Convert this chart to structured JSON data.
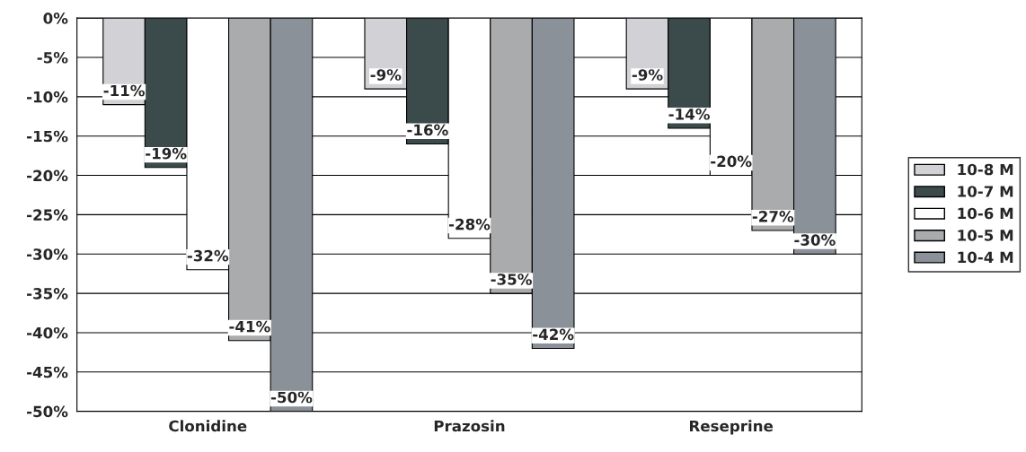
{
  "chart_data": {
    "type": "bar",
    "categories": [
      "Clonidine",
      "Prazosin",
      "Reseprine"
    ],
    "series": [
      {
        "name": "10-8 M",
        "color": "#d2d2d6",
        "values": [
          -11,
          -9,
          -9
        ],
        "value_labels": [
          "-11%",
          "-9%",
          "-9%"
        ]
      },
      {
        "name": "10-7 M",
        "color": "#3b4b4b",
        "values": [
          -19,
          -16,
          -14
        ],
        "value_labels": [
          "-19%",
          "-16%",
          "-14%"
        ]
      },
      {
        "name": "10-6 M",
        "color": "#ffffff",
        "values": [
          -32,
          -28,
          -20
        ],
        "value_labels": [
          "-32%",
          "-28%",
          "-20%"
        ]
      },
      {
        "name": "10-5 M",
        "color": "#a9abad",
        "values": [
          -41,
          -35,
          -27
        ],
        "value_labels": [
          "-41%",
          "-35%",
          "-27%"
        ]
      },
      {
        "name": "10-4 M",
        "color": "#8b9198",
        "values": [
          -50,
          -42,
          -30
        ],
        "value_labels": [
          "-50%",
          "-42%",
          "-30%"
        ]
      }
    ],
    "ylim": [
      -50,
      0
    ],
    "yticks": [
      {
        "value": 0,
        "label": "0%"
      },
      {
        "value": -5,
        "label": "-5%"
      },
      {
        "value": -10,
        "label": "-10%"
      },
      {
        "value": -15,
        "label": "-15%"
      },
      {
        "value": -20,
        "label": "-20%"
      },
      {
        "value": -25,
        "label": "-25%"
      },
      {
        "value": -30,
        "label": "-30%"
      },
      {
        "value": -35,
        "label": "-35%"
      },
      {
        "value": -40,
        "label": "-40%"
      },
      {
        "value": -45,
        "label": "-45%"
      },
      {
        "value": -50,
        "label": "-50%"
      }
    ],
    "grid": "y",
    "legend": "right"
  }
}
